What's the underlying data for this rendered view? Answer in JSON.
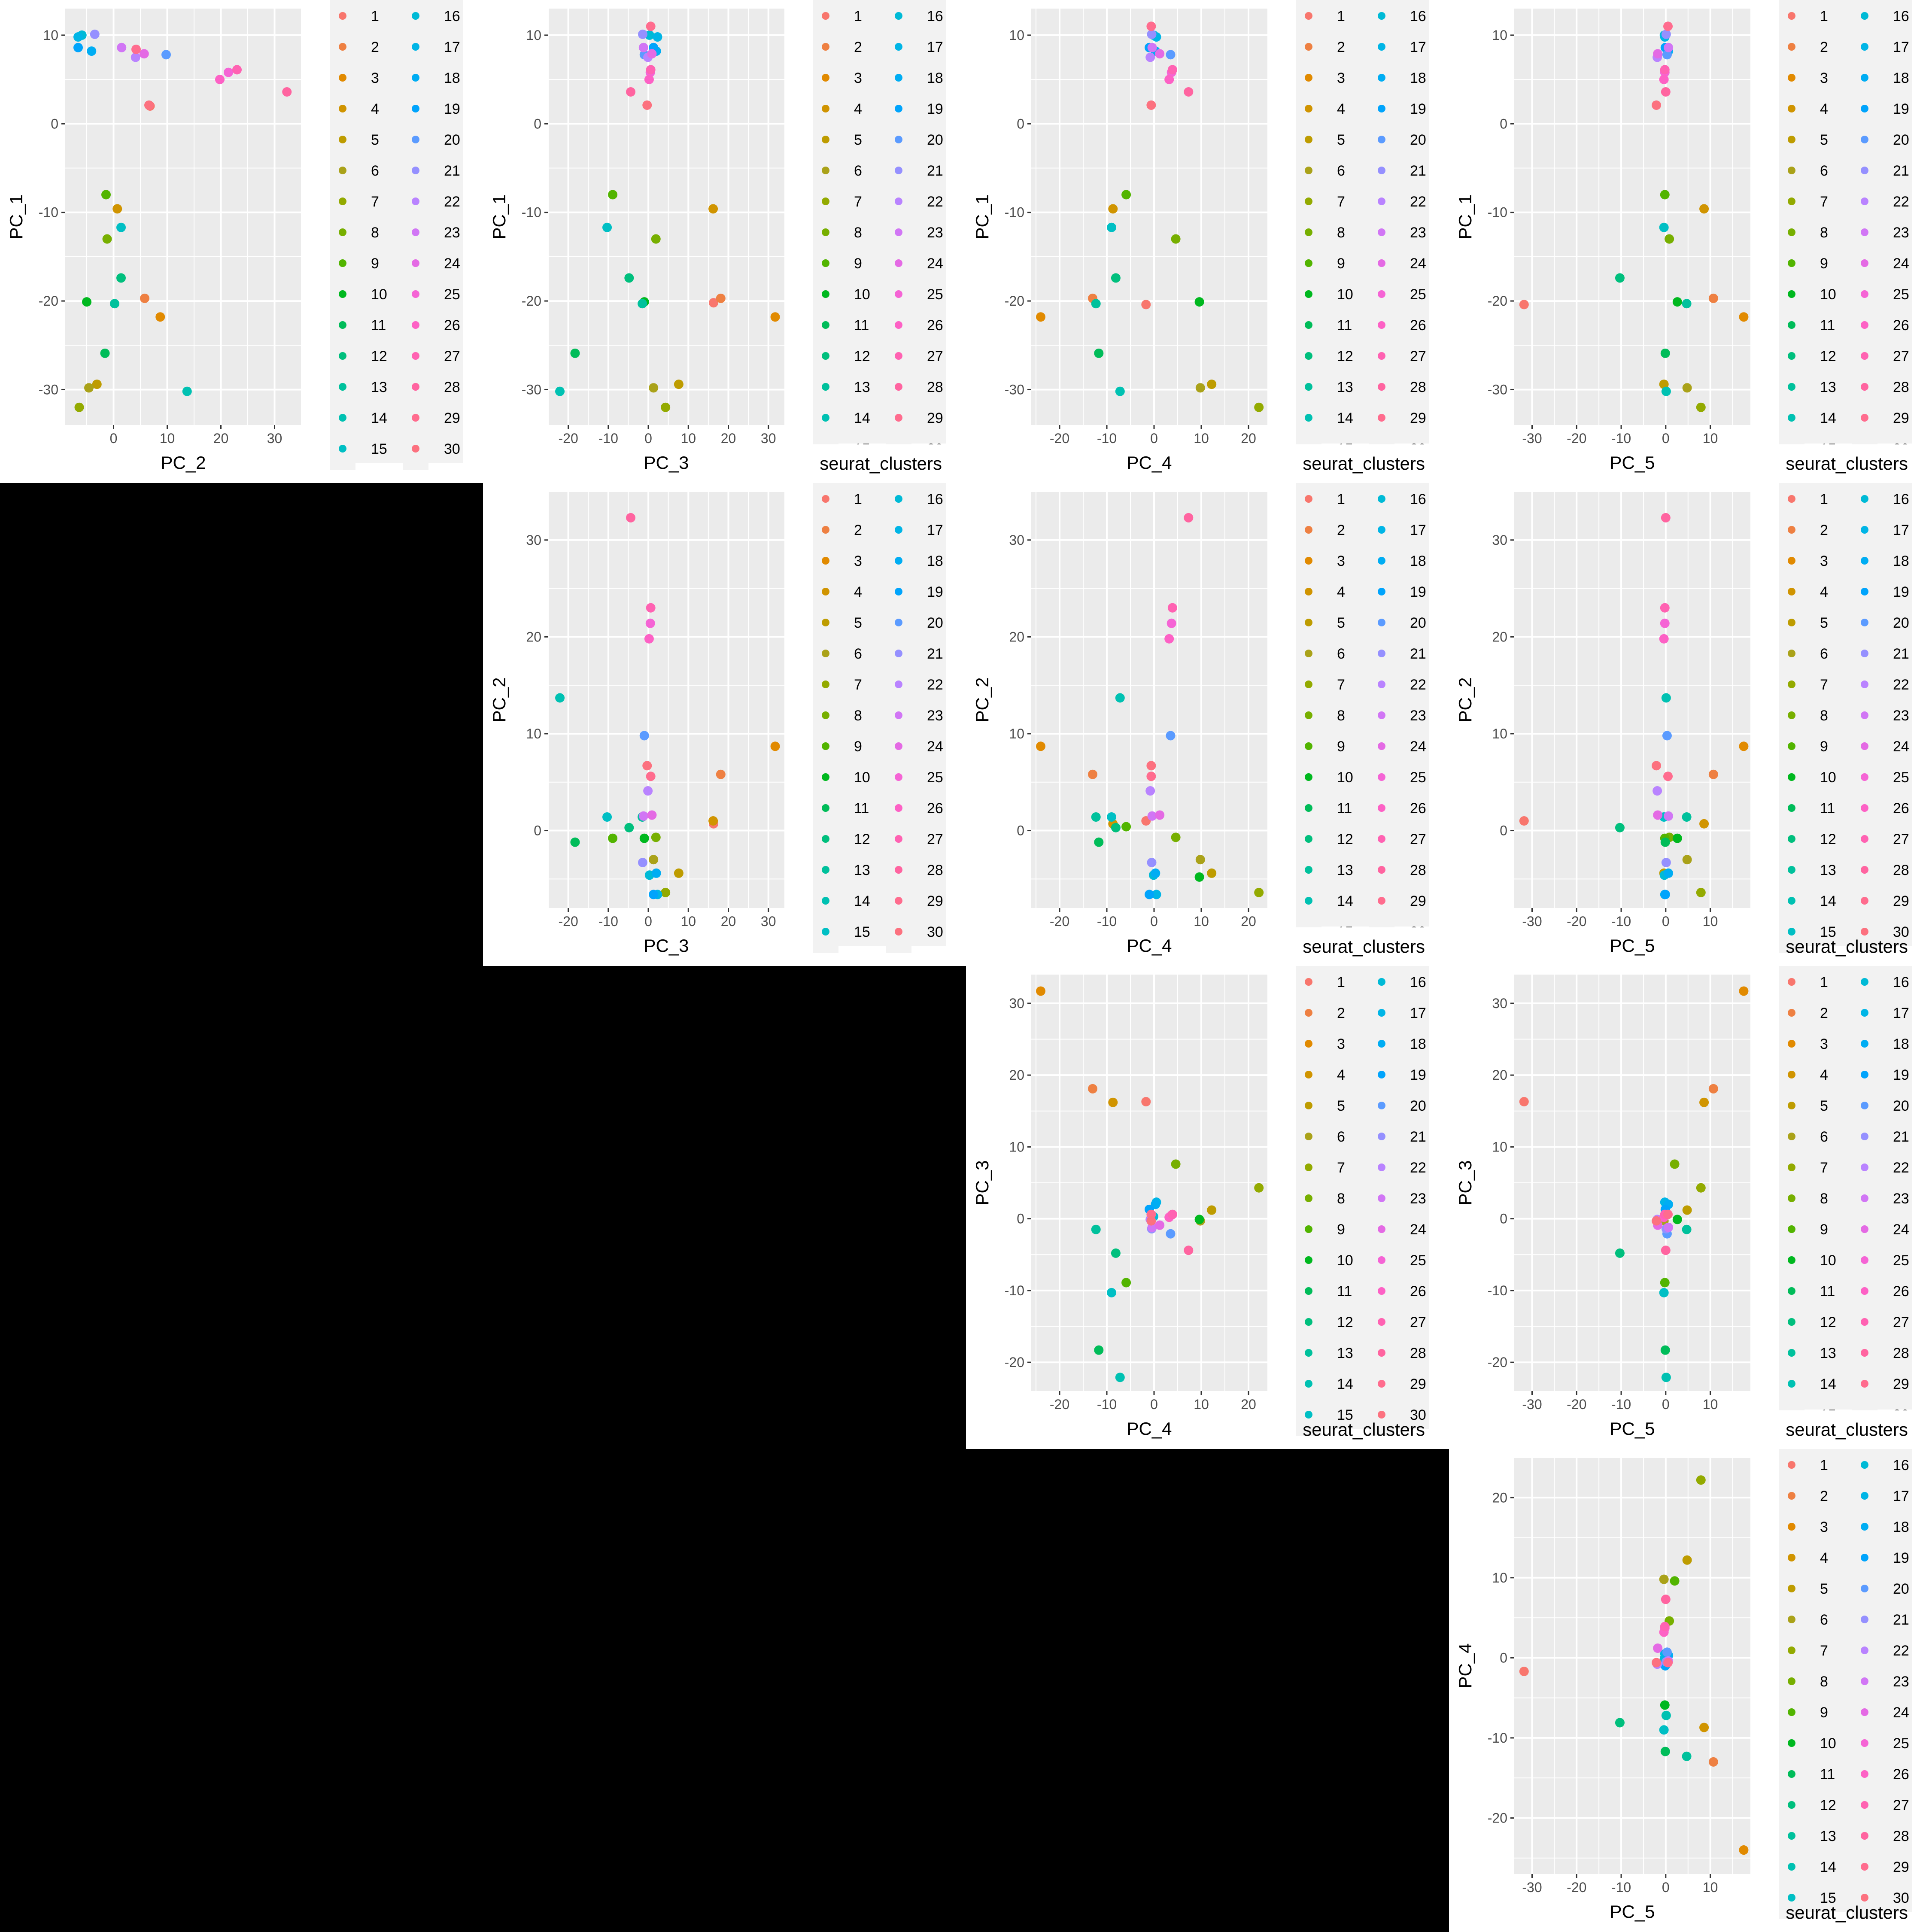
{
  "legend_title": "seurat_clusters",
  "colors": [
    "#F8766D",
    "#EE8042",
    "#E18A00",
    "#D09400",
    "#BE9C00",
    "#AAA219",
    "#93AA00",
    "#77AF00",
    "#52B400",
    "#00B81F",
    "#00BC59",
    "#00BF7D",
    "#00C19C",
    "#00C1B2",
    "#00BFC4",
    "#00BAD6",
    "#00B5E6",
    "#00ADF3",
    "#00A4FC",
    "#5B9BFF",
    "#9590FF",
    "#B983FF",
    "#D176F5",
    "#E46AE4",
    "#F564D5",
    "#FD61C5",
    "#FF62B2",
    "#FF64A0",
    "#FF6C8E",
    "#FC717F"
  ],
  "chart_data": [
    {
      "type": "scatter",
      "xlabel": "PC_2",
      "ylabel": "PC_1",
      "xlim": [
        -9,
        35
      ],
      "ylim": [
        -34,
        13
      ],
      "xticks": [
        0,
        10,
        20,
        30
      ],
      "yticks": [
        -30,
        -20,
        -10,
        0,
        10
      ],
      "legend_clip": false,
      "legend_title": false,
      "labels": [
        "1",
        "2",
        "3",
        "4",
        "5",
        "6",
        "7",
        "8",
        "9",
        "10",
        "11",
        "12",
        "13",
        "14",
        "15",
        "16",
        "17",
        "18",
        "19",
        "20",
        "21",
        "22",
        "23",
        "24",
        "25",
        "26",
        "27",
        "28",
        "29",
        "30"
      ],
      "x": [
        6.8,
        5.8,
        8.7,
        0.7,
        -3.1,
        -4.6,
        -6.4,
        -1.2,
        -1.4,
        -5.0,
        -1.6,
        1.4,
        0.2,
        13.7,
        1.4,
        -5.9,
        -6.6,
        -4.1,
        -6.6,
        9.8,
        -3.5,
        4.1,
        1.5,
        5.7,
        21.4,
        19.8,
        23.0,
        32.3,
        4.2,
        6.6
      ],
      "y": [
        2.0,
        -19.7,
        -21.8,
        -9.6,
        -29.4,
        -29.8,
        -32.0,
        -13.0,
        -8.0,
        -20.1,
        -25.9,
        -17.4,
        -20.3,
        -30.2,
        -11.7,
        10.0,
        9.8,
        8.2,
        8.6,
        7.8,
        10.1,
        7.5,
        8.6,
        7.9,
        5.8,
        5.0,
        6.1,
        3.6,
        8.4,
        2.1
      ]
    },
    {
      "type": "scatter",
      "xlabel": "PC_3",
      "ylabel": "PC_1",
      "xlim": [
        -25,
        34
      ],
      "ylim": [
        -34,
        13
      ],
      "xticks": [
        -20,
        -10,
        0,
        10,
        20,
        30
      ],
      "yticks": [
        -30,
        -20,
        -10,
        0,
        10
      ],
      "legend_clip": true,
      "legend_title": true,
      "labels": [
        "1",
        "2",
        "3",
        "4",
        "5",
        "6",
        "7",
        "8",
        "9",
        "10",
        "11",
        "12",
        "13",
        "14",
        "15",
        "16",
        "17",
        "18",
        "19",
        "20",
        "21",
        "22",
        "23",
        "24",
        "25",
        "26",
        "27",
        "28",
        "29",
        "30"
      ],
      "x": [
        16.3,
        18.1,
        31.7,
        16.2,
        7.6,
        1.3,
        4.3,
        1.9,
        -8.9,
        -1.0,
        -18.3,
        -4.8,
        -1.5,
        -22.1,
        -10.3,
        0.3,
        2.3,
        2.0,
        1.3,
        -1.0,
        -1.4,
        -0.1,
        -1.2,
        0.9,
        0.5,
        0.2,
        0.6,
        -4.4,
        0.6,
        -0.3
      ],
      "y": [
        -20.2,
        -19.7,
        -21.8,
        -9.6,
        -29.4,
        -29.8,
        -32.0,
        -13.0,
        -8.0,
        -20.1,
        -25.9,
        -17.4,
        -20.3,
        -30.2,
        -11.7,
        10.0,
        9.8,
        8.2,
        8.6,
        7.8,
        10.1,
        7.5,
        8.6,
        7.9,
        5.8,
        5.0,
        6.1,
        3.6,
        11.0,
        2.1
      ]
    },
    {
      "type": "scatter",
      "xlabel": "PC_4",
      "ylabel": "PC_1",
      "xlim": [
        -26,
        24
      ],
      "ylim": [
        -34,
        13
      ],
      "xticks": [
        -20,
        -10,
        0,
        10,
        20
      ],
      "yticks": [
        -30,
        -20,
        -10,
        0,
        10
      ],
      "legend_clip": true,
      "legend_title": true,
      "labels": [
        "1",
        "2",
        "3",
        "4",
        "5",
        "6",
        "7",
        "8",
        "9",
        "10",
        "11",
        "12",
        "13",
        "14",
        "15",
        "16",
        "17",
        "18",
        "19",
        "20",
        "21",
        "22",
        "23",
        "24",
        "25",
        "26",
        "27",
        "28",
        "29",
        "30"
      ],
      "x": [
        -1.7,
        -13.0,
        -24.0,
        -8.7,
        12.2,
        9.8,
        22.2,
        4.6,
        -5.9,
        9.6,
        -11.7,
        -8.1,
        -12.3,
        -7.2,
        -9.0,
        -0.1,
        0.5,
        0.3,
        -1.0,
        3.5,
        -0.5,
        -0.8,
        -0.4,
        1.2,
        3.7,
        3.2,
        3.9,
        7.3,
        -0.6,
        -0.6
      ],
      "y": [
        -20.4,
        -19.7,
        -21.8,
        -9.6,
        -29.4,
        -29.8,
        -32.0,
        -13.0,
        -8.0,
        -20.1,
        -25.9,
        -17.4,
        -20.3,
        -30.2,
        -11.7,
        10.0,
        9.8,
        8.2,
        8.6,
        7.8,
        10.1,
        7.5,
        8.6,
        7.9,
        5.8,
        5.0,
        6.1,
        3.6,
        11.0,
        2.1
      ]
    },
    {
      "type": "scatter",
      "xlabel": "PC_5",
      "ylabel": "PC_1",
      "xlim": [
        -34,
        19
      ],
      "ylim": [
        -34,
        13
      ],
      "xticks": [
        -30,
        -20,
        -10,
        0,
        10
      ],
      "yticks": [
        -30,
        -20,
        -10,
        0,
        10
      ],
      "legend_clip": true,
      "legend_title": true,
      "labels": [
        "1",
        "2",
        "3",
        "4",
        "5",
        "6",
        "7",
        "8",
        "9",
        "10",
        "11",
        "12",
        "13",
        "14",
        "15",
        "16",
        "17",
        "18",
        "19",
        "20",
        "21",
        "22",
        "23",
        "24",
        "25",
        "26",
        "27",
        "28",
        "29",
        "30"
      ],
      "x": [
        -31.8,
        10.7,
        17.5,
        8.6,
        -0.4,
        4.8,
        7.9,
        0.8,
        -0.2,
        2.6,
        -0.1,
        -10.3,
        4.7,
        0.1,
        -0.4,
        -0.3,
        -0.2,
        0.6,
        -0.1,
        0.3,
        0.1,
        -1.9,
        0.6,
        -1.8,
        -0.2,
        -0.4,
        -0.2,
        0.0,
        0.5,
        -2.1
      ],
      "y": [
        -20.4,
        -19.7,
        -21.8,
        -9.6,
        -29.4,
        -29.8,
        -32.0,
        -13.0,
        -8.0,
        -20.1,
        -25.9,
        -17.4,
        -20.3,
        -30.2,
        -11.7,
        10.0,
        9.8,
        8.2,
        8.6,
        7.8,
        10.1,
        7.5,
        8.6,
        7.9,
        5.8,
        5.0,
        6.1,
        3.6,
        11.0,
        2.1
      ]
    },
    {
      "type": "scatter",
      "xlabel": "PC_3",
      "ylabel": "PC_2",
      "xlim": [
        -25,
        34
      ],
      "ylim": [
        -8,
        35
      ],
      "xticks": [
        -20,
        -10,
        0,
        10,
        20,
        30
      ],
      "yticks": [
        0,
        10,
        20,
        30
      ],
      "legend_clip": false,
      "legend_title": false,
      "labels": [
        "1",
        "2",
        "3",
        "4",
        "5",
        "6",
        "7",
        "8",
        "9",
        "10",
        "11",
        "12",
        "13",
        "14",
        "15",
        "16",
        "17",
        "18",
        "19",
        "20",
        "21",
        "22",
        "23",
        "24",
        "25",
        "26",
        "27",
        "28",
        "29",
        "30"
      ],
      "x": [
        16.3,
        18.1,
        31.7,
        16.2,
        7.6,
        1.3,
        4.3,
        1.9,
        -8.9,
        -1.0,
        -18.3,
        -4.8,
        -1.5,
        -22.1,
        -10.3,
        0.3,
        2.3,
        2.0,
        1.3,
        -1.0,
        -1.4,
        -0.1,
        -1.2,
        0.9,
        0.5,
        0.2,
        0.6,
        -4.4,
        0.6,
        -0.3
      ],
      "y": [
        0.7,
        5.8,
        8.7,
        1.0,
        -4.4,
        -3.0,
        -6.4,
        -0.7,
        -0.8,
        -0.8,
        -1.2,
        0.3,
        1.4,
        13.7,
        1.4,
        -4.6,
        -6.6,
        -4.4,
        -6.6,
        9.8,
        -3.3,
        4.1,
        1.5,
        1.6,
        21.4,
        19.8,
        23.0,
        32.3,
        5.6,
        6.7
      ]
    },
    {
      "type": "scatter",
      "xlabel": "PC_4",
      "ylabel": "PC_2",
      "xlim": [
        -26,
        24
      ],
      "ylim": [
        -8,
        35
      ],
      "xticks": [
        -20,
        -10,
        0,
        10,
        20
      ],
      "yticks": [
        0,
        10,
        20,
        30
      ],
      "legend_clip": true,
      "legend_title": true,
      "labels": [
        "1",
        "2",
        "3",
        "4",
        "5",
        "6",
        "7",
        "8",
        "9",
        "10",
        "11",
        "12",
        "13",
        "14",
        "15",
        "16",
        "17",
        "18",
        "19",
        "20",
        "21",
        "22",
        "23",
        "24",
        "25",
        "26",
        "27",
        "28",
        "29",
        "30"
      ],
      "x": [
        -1.7,
        -13.0,
        -24.0,
        -8.7,
        12.2,
        9.8,
        22.2,
        4.6,
        -5.9,
        9.6,
        -11.7,
        -8.1,
        -12.3,
        -7.2,
        -9.0,
        -0.1,
        0.5,
        0.3,
        -1.0,
        3.5,
        -0.5,
        -0.8,
        -0.4,
        1.2,
        3.7,
        3.2,
        3.9,
        7.3,
        -0.6,
        -0.6
      ],
      "y": [
        1.0,
        5.8,
        8.7,
        0.7,
        -4.4,
        -3.0,
        -6.4,
        -0.7,
        0.4,
        -4.8,
        -1.2,
        0.3,
        1.4,
        13.7,
        1.4,
        -4.6,
        -6.6,
        -4.4,
        -6.6,
        9.8,
        -3.3,
        4.1,
        1.5,
        1.6,
        21.4,
        19.8,
        23.0,
        32.3,
        5.6,
        6.7
      ]
    },
    {
      "type": "scatter",
      "xlabel": "PC_5",
      "ylabel": "PC_2",
      "xlim": [
        -34,
        19
      ],
      "ylim": [
        -8,
        35
      ],
      "xticks": [
        -30,
        -20,
        -10,
        0,
        10
      ],
      "yticks": [
        0,
        10,
        20,
        30
      ],
      "legend_clip": false,
      "legend_title": true,
      "labels": [
        "1",
        "2",
        "3",
        "4",
        "5",
        "6",
        "7",
        "8",
        "9",
        "10",
        "11",
        "12",
        "13",
        "14",
        "15",
        "16",
        "17",
        "18",
        "19",
        "20",
        "21",
        "22",
        "23",
        "24",
        "25",
        "26",
        "27",
        "28",
        "29",
        "30"
      ],
      "x": [
        -31.8,
        10.7,
        17.5,
        8.6,
        -0.4,
        4.8,
        7.9,
        0.8,
        -0.2,
        2.6,
        -0.1,
        -10.3,
        4.7,
        0.1,
        -0.4,
        -0.3,
        -0.2,
        0.6,
        -0.1,
        0.3,
        0.1,
        -1.9,
        0.6,
        -1.8,
        -0.2,
        -0.4,
        -0.2,
        0.0,
        0.5,
        -2.1
      ],
      "y": [
        1.0,
        5.8,
        8.7,
        0.7,
        -4.4,
        -3.0,
        -6.4,
        -0.7,
        -0.8,
        -0.8,
        -1.2,
        0.3,
        1.4,
        13.7,
        1.4,
        -4.6,
        -6.6,
        -4.4,
        -6.6,
        9.8,
        -3.3,
        4.1,
        1.5,
        1.6,
        21.4,
        19.8,
        23.0,
        32.3,
        5.6,
        6.7
      ]
    },
    {
      "type": "scatter",
      "xlabel": "PC_4",
      "ylabel": "PC_3",
      "xlim": [
        -26,
        24
      ],
      "ylim": [
        -24,
        34
      ],
      "xticks": [
        -20,
        -10,
        0,
        10,
        20
      ],
      "yticks": [
        -20,
        -10,
        0,
        10,
        20,
        30
      ],
      "legend_clip": false,
      "legend_title": true,
      "labels": [
        "1",
        "2",
        "3",
        "4",
        "5",
        "6",
        "7",
        "8",
        "9",
        "10",
        "11",
        "12",
        "13",
        "14",
        "15",
        "16",
        "17",
        "18",
        "19",
        "20",
        "21",
        "22",
        "23",
        "24",
        "25",
        "26",
        "27",
        "28",
        "29",
        "30"
      ],
      "x": [
        -1.7,
        -13.0,
        -24.0,
        -8.7,
        12.2,
        9.8,
        22.2,
        4.6,
        -5.9,
        9.6,
        -11.7,
        -8.1,
        -12.3,
        -7.2,
        -9.0,
        -0.1,
        0.5,
        0.3,
        -1.0,
        3.5,
        -0.5,
        -0.8,
        -0.4,
        1.2,
        3.7,
        3.2,
        3.9,
        7.3,
        -0.6,
        -0.6
      ],
      "y": [
        16.3,
        18.1,
        31.7,
        16.2,
        1.2,
        -0.3,
        4.3,
        7.6,
        -8.9,
        -0.1,
        -18.3,
        -4.8,
        -1.5,
        -22.1,
        -10.3,
        0.3,
        2.3,
        2.0,
        1.3,
        -2.1,
        -1.4,
        -0.1,
        -1.2,
        -0.9,
        0.5,
        0.2,
        0.6,
        -4.4,
        0.6,
        -0.3
      ]
    },
    {
      "type": "scatter",
      "xlabel": "PC_5",
      "ylabel": "PC_3",
      "xlim": [
        -34,
        19
      ],
      "ylim": [
        -24,
        34
      ],
      "xticks": [
        -30,
        -20,
        -10,
        0,
        10
      ],
      "yticks": [
        -20,
        -10,
        0,
        10,
        20,
        30
      ],
      "legend_clip": true,
      "legend_title": true,
      "labels": [
        "1",
        "2",
        "3",
        "4",
        "5",
        "6",
        "7",
        "8",
        "9",
        "10",
        "11",
        "12",
        "13",
        "14",
        "15",
        "16",
        "17",
        "18",
        "19",
        "20",
        "21",
        "22",
        "23",
        "24",
        "25",
        "26",
        "27",
        "28",
        "29",
        "30"
      ],
      "x": [
        -31.8,
        10.7,
        17.5,
        8.6,
        4.8,
        -0.4,
        7.9,
        2.0,
        -0.2,
        2.6,
        -0.1,
        -10.3,
        4.7,
        0.1,
        -0.4,
        -0.3,
        -0.2,
        0.6,
        -0.1,
        0.3,
        0.1,
        -1.9,
        0.6,
        -1.8,
        -0.2,
        -0.4,
        -0.2,
        0.0,
        0.5,
        -2.1
      ],
      "y": [
        16.3,
        18.1,
        31.7,
        16.2,
        1.2,
        -0.3,
        4.3,
        7.6,
        -8.9,
        -0.1,
        -18.3,
        -4.8,
        -1.5,
        -22.1,
        -10.3,
        0.3,
        2.3,
        2.0,
        1.3,
        -2.1,
        -1.4,
        -0.1,
        -1.2,
        -0.9,
        0.5,
        0.2,
        0.6,
        -4.4,
        0.6,
        -0.3
      ]
    },
    {
      "type": "scatter",
      "xlabel": "PC_5",
      "ylabel": "PC_4",
      "xlim": [
        -34,
        19
      ],
      "ylim": [
        -27,
        25
      ],
      "xticks": [
        -30,
        -20,
        -10,
        0,
        10
      ],
      "yticks": [
        -20,
        -10,
        0,
        10,
        20
      ],
      "legend_clip": false,
      "legend_title": true,
      "labels": [
        "1",
        "2",
        "3",
        "4",
        "5",
        "6",
        "7",
        "8",
        "9",
        "10",
        "11",
        "12",
        "13",
        "14",
        "15",
        "16",
        "17",
        "18",
        "19",
        "20",
        "21",
        "22",
        "23",
        "24",
        "25",
        "26",
        "27",
        "28",
        "29",
        "30"
      ],
      "x": [
        -31.8,
        10.7,
        17.5,
        8.6,
        4.8,
        -0.4,
        7.9,
        0.8,
        2.0,
        -0.2,
        -0.1,
        -10.3,
        4.7,
        0.1,
        -0.4,
        -0.3,
        -0.2,
        0.6,
        -0.1,
        0.3,
        0.1,
        -1.9,
        0.6,
        -1.8,
        -0.2,
        -0.4,
        -0.2,
        0.0,
        0.5,
        -2.1
      ],
      "y": [
        -1.7,
        -13.0,
        -24.0,
        -8.7,
        12.2,
        9.8,
        22.2,
        4.6,
        9.6,
        -5.9,
        -11.7,
        -8.1,
        -12.3,
        -7.2,
        -9.0,
        -0.1,
        0.5,
        0.3,
        -1.0,
        0.7,
        -0.5,
        -0.8,
        -0.4,
        1.2,
        3.7,
        3.2,
        3.9,
        7.3,
        -0.6,
        -0.6
      ]
    }
  ]
}
